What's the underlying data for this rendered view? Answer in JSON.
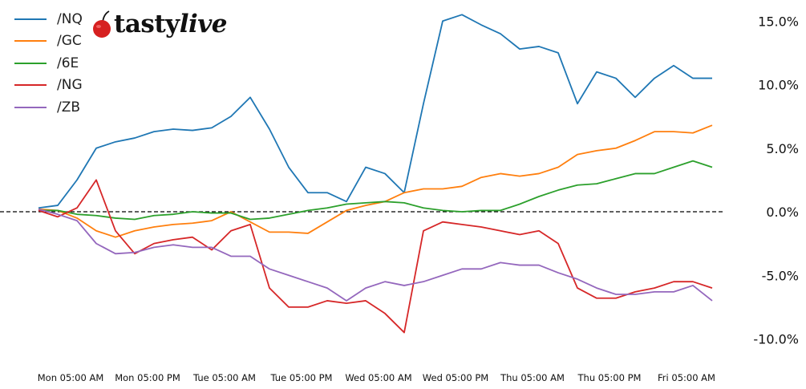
{
  "logo": {
    "brand": "tastylive",
    "brand_plain": "tasty",
    "brand_italic": "live",
    "icon": "cherry-icon",
    "icon_color": "#d62020"
  },
  "chart_data": {
    "type": "line",
    "title": "",
    "xlabel": "",
    "ylabel": "",
    "legend_position": "top-left",
    "grid": false,
    "zero_line": "dashed black",
    "ylim": [
      -12,
      16
    ],
    "yticks": [
      15,
      10,
      5,
      0,
      -5,
      -10
    ],
    "ytick_labels": [
      "15.0%",
      "10.0%",
      "5.0%",
      "0.0%",
      "-5.0%",
      "-10.0%"
    ],
    "xtick_labels": [
      "Mon 05:00 AM",
      "Mon 05:00 PM",
      "Tue 05:00 AM",
      "Tue 05:00 PM",
      "Wed 05:00 AM",
      "Wed 05:00 PM",
      "Thu 05:00 AM",
      "Thu 05:00 PM",
      "Fri 05:00 AM"
    ],
    "xticks": [
      "Mon 05:00",
      "Mon 17:00",
      "Tue 05:00",
      "Tue 17:00",
      "Wed 05:00",
      "Wed 17:00",
      "Thu 05:00",
      "Thu 17:00",
      "Fri 05:00"
    ],
    "x": [
      "Mon 00:00",
      "Mon 03:00",
      "Mon 06:00",
      "Mon 09:00",
      "Mon 12:00",
      "Mon 15:00",
      "Mon 18:00",
      "Mon 21:00",
      "Tue 00:00",
      "Tue 03:00",
      "Tue 06:00",
      "Tue 09:00",
      "Tue 12:00",
      "Tue 15:00",
      "Tue 18:00",
      "Tue 21:00",
      "Wed 00:00",
      "Wed 03:00",
      "Wed 06:00",
      "Wed 09:00",
      "Wed 12:00",
      "Wed 15:00",
      "Wed 18:00",
      "Wed 21:00",
      "Thu 00:00",
      "Thu 03:00",
      "Thu 06:00",
      "Thu 09:00",
      "Thu 12:00",
      "Thu 15:00",
      "Thu 18:00",
      "Thu 21:00",
      "Fri 00:00",
      "Fri 03:00",
      "Fri 06:00",
      "Fri 09:00"
    ],
    "series": [
      {
        "name": "/NQ",
        "color": "#1f77b4",
        "values": [
          0.3,
          0.5,
          2.5,
          5.0,
          5.5,
          5.8,
          6.3,
          6.5,
          6.4,
          6.6,
          7.5,
          9.0,
          6.5,
          3.5,
          1.5,
          1.5,
          0.8,
          3.5,
          3.0,
          1.5,
          8.5,
          15.0,
          15.5,
          14.7,
          14.0,
          12.8,
          13.0,
          12.5,
          8.5,
          11.0,
          10.5,
          9.0,
          10.5,
          11.5,
          10.5,
          10.5
        ]
      },
      {
        "name": "/GC",
        "color": "#ff7f0e",
        "values": [
          0.2,
          0.1,
          -0.5,
          -1.5,
          -2.0,
          -1.5,
          -1.2,
          -1.0,
          -0.9,
          -0.7,
          0.0,
          -0.8,
          -1.6,
          -1.6,
          -1.7,
          -0.8,
          0.1,
          0.5,
          0.8,
          1.5,
          1.8,
          1.8,
          2.0,
          2.7,
          3.0,
          2.8,
          3.0,
          3.5,
          4.5,
          4.8,
          5.0,
          5.6,
          6.3,
          6.3,
          6.2,
          6.8
        ]
      },
      {
        "name": "/6E",
        "color": "#2ca02c",
        "values": [
          0.1,
          0.1,
          -0.2,
          -0.3,
          -0.5,
          -0.6,
          -0.3,
          -0.2,
          0.0,
          -0.1,
          -0.1,
          -0.6,
          -0.5,
          -0.2,
          0.1,
          0.3,
          0.6,
          0.7,
          0.8,
          0.7,
          0.3,
          0.1,
          0.0,
          0.1,
          0.1,
          0.6,
          1.2,
          1.7,
          2.1,
          2.2,
          2.6,
          3.0,
          3.0,
          3.5,
          4.0,
          3.5
        ]
      },
      {
        "name": "/NG",
        "color": "#d62728",
        "values": [
          0.1,
          -0.4,
          0.3,
          2.5,
          -1.5,
          -3.3,
          -2.5,
          -2.2,
          -2.0,
          -3.0,
          -1.5,
          -1.0,
          -6.0,
          -7.5,
          -7.5,
          -7.0,
          -7.2,
          -7.0,
          -8.0,
          -9.5,
          -1.5,
          -0.8,
          -1.0,
          -1.2,
          -1.5,
          -1.8,
          -1.5,
          -2.5,
          -6.0,
          -6.8,
          -6.8,
          -6.3,
          -6.0,
          -5.5,
          -5.5,
          -6.0
        ]
      },
      {
        "name": "/ZB",
        "color": "#9467bd",
        "values": [
          0.2,
          -0.2,
          -0.7,
          -2.5,
          -3.3,
          -3.2,
          -2.8,
          -2.6,
          -2.8,
          -2.8,
          -3.5,
          -3.5,
          -4.5,
          -5.0,
          -5.5,
          -6.0,
          -7.0,
          -6.0,
          -5.5,
          -5.8,
          -5.5,
          -5.0,
          -4.5,
          -4.5,
          -4.0,
          -4.2,
          -4.2,
          -4.8,
          -5.3,
          -6.0,
          -6.5,
          -6.5,
          -6.3,
          -6.3,
          -5.8,
          -7.0
        ]
      }
    ]
  }
}
